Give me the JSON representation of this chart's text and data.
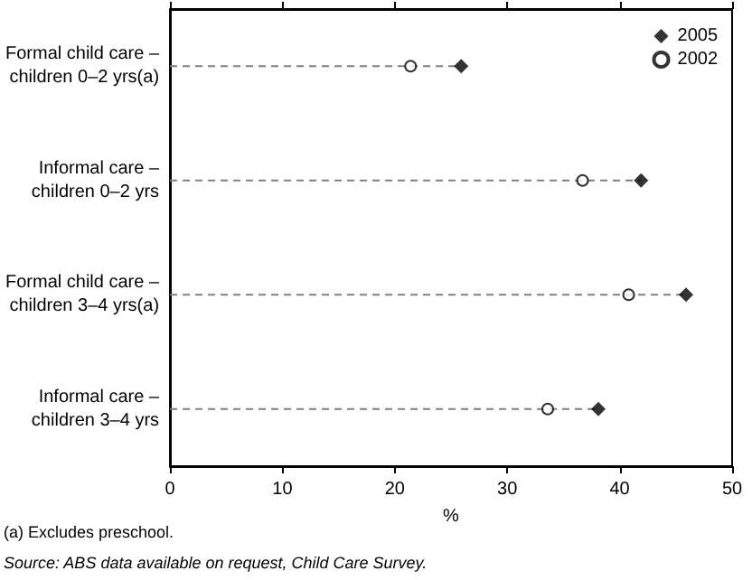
{
  "chart_data": {
    "type": "lollipop",
    "orientation": "horizontal",
    "xlabel": "%",
    "categories": [
      "Formal child care –\nchildren 0–2 yrs(a)",
      "Informal care –\nchildren 0–2 yrs",
      "Formal child care –\nchildren 3–4 yrs(a)",
      "Informal care –\nchildren 3–4 yrs"
    ],
    "series": [
      {
        "name": "2005",
        "color": "#000000",
        "marker": "diamond",
        "line_style": "dashed",
        "values": [
          25.9,
          41.9,
          45.9,
          38.1
        ]
      },
      {
        "name": "2002",
        "type": "scatter",
        "color": "#000000",
        "marker": "circle",
        "values": [
          21.4,
          36.7,
          40.8,
          33.6
        ]
      }
    ],
    "xlim": [
      0,
      50
    ],
    "xticks": [
      0,
      10,
      20,
      30,
      40,
      50
    ],
    "grid": false,
    "legend": "top right",
    "annotations": [
      "(a) Excludes preschool.",
      "Source: ABS data available on request, Child Care Survey."
    ]
  }
}
